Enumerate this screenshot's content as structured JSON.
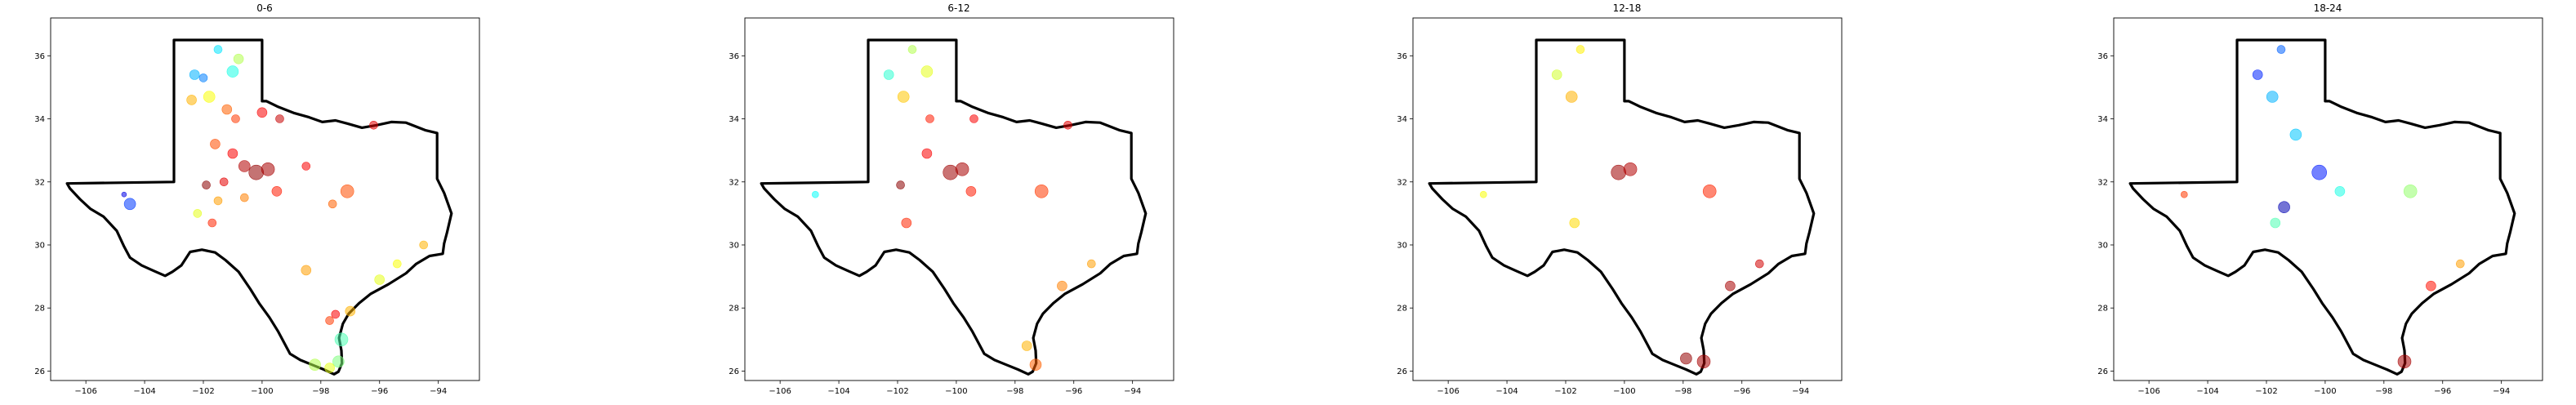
{
  "chart_data": [
    {
      "type": "scatter",
      "title": "0-6",
      "xlim": [
        -107.2,
        -92.6
      ],
      "ylim": [
        25.7,
        37.2
      ],
      "xticks": [
        "−106",
        "−104",
        "−102",
        "−100",
        "−98",
        "−96",
        "−94"
      ],
      "yticks": [
        "26",
        "28",
        "30",
        "32",
        "34",
        "36"
      ],
      "grid": false,
      "legend": false,
      "points": [
        {
          "lon": -104.7,
          "lat": 31.6,
          "v": 0.1,
          "s": 3
        },
        {
          "lon": -104.5,
          "lat": 31.3,
          "v": 0.18,
          "s": 7
        },
        {
          "lon": -102.3,
          "lat": 35.4,
          "v": 0.3,
          "s": 6
        },
        {
          "lon": -102.0,
          "lat": 35.3,
          "v": 0.25,
          "s": 5
        },
        {
          "lon": -101.5,
          "lat": 36.2,
          "v": 0.35,
          "s": 5
        },
        {
          "lon": -101.0,
          "lat": 35.5,
          "v": 0.4,
          "s": 7
        },
        {
          "lon": -100.8,
          "lat": 35.9,
          "v": 0.55,
          "s": 6
        },
        {
          "lon": -101.8,
          "lat": 34.7,
          "v": 0.62,
          "s": 7
        },
        {
          "lon": -102.4,
          "lat": 34.6,
          "v": 0.7,
          "s": 6
        },
        {
          "lon": -101.2,
          "lat": 34.3,
          "v": 0.78,
          "s": 6
        },
        {
          "lon": -100.9,
          "lat": 34.0,
          "v": 0.82,
          "s": 5
        },
        {
          "lon": -100.0,
          "lat": 34.2,
          "v": 0.88,
          "s": 6
        },
        {
          "lon": -99.4,
          "lat": 34.0,
          "v": 0.93,
          "s": 5
        },
        {
          "lon": -101.6,
          "lat": 33.2,
          "v": 0.8,
          "s": 6
        },
        {
          "lon": -101.0,
          "lat": 32.9,
          "v": 0.88,
          "s": 6
        },
        {
          "lon": -100.6,
          "lat": 32.5,
          "v": 0.95,
          "s": 7
        },
        {
          "lon": -100.2,
          "lat": 32.3,
          "v": 0.98,
          "s": 9
        },
        {
          "lon": -99.8,
          "lat": 32.4,
          "v": 0.96,
          "s": 8
        },
        {
          "lon": -101.3,
          "lat": 32.0,
          "v": 0.9,
          "s": 5
        },
        {
          "lon": -101.9,
          "lat": 31.9,
          "v": 0.99,
          "s": 5
        },
        {
          "lon": -101.5,
          "lat": 31.4,
          "v": 0.72,
          "s": 5
        },
        {
          "lon": -102.2,
          "lat": 31.0,
          "v": 0.6,
          "s": 5
        },
        {
          "lon": -101.7,
          "lat": 30.7,
          "v": 0.84,
          "s": 5
        },
        {
          "lon": -100.6,
          "lat": 31.5,
          "v": 0.75,
          "s": 5
        },
        {
          "lon": -99.5,
          "lat": 31.7,
          "v": 0.85,
          "s": 6
        },
        {
          "lon": -98.5,
          "lat": 32.5,
          "v": 0.88,
          "s": 5
        },
        {
          "lon": -97.6,
          "lat": 31.3,
          "v": 0.78,
          "s": 5
        },
        {
          "lon": -97.1,
          "lat": 31.7,
          "v": 0.8,
          "s": 8
        },
        {
          "lon": -96.2,
          "lat": 33.8,
          "v": 0.9,
          "s": 5
        },
        {
          "lon": -98.5,
          "lat": 29.2,
          "v": 0.72,
          "s": 6
        },
        {
          "lon": -97.7,
          "lat": 27.6,
          "v": 0.82,
          "s": 5
        },
        {
          "lon": -97.5,
          "lat": 27.8,
          "v": 0.88,
          "s": 5
        },
        {
          "lon": -97.0,
          "lat": 27.9,
          "v": 0.7,
          "s": 6
        },
        {
          "lon": -97.3,
          "lat": 27.0,
          "v": 0.45,
          "s": 8
        },
        {
          "lon": -97.4,
          "lat": 26.3,
          "v": 0.5,
          "s": 7
        },
        {
          "lon": -98.2,
          "lat": 26.2,
          "v": 0.55,
          "s": 7
        },
        {
          "lon": -97.7,
          "lat": 26.1,
          "v": 0.6,
          "s": 6
        },
        {
          "lon": -96.0,
          "lat": 28.9,
          "v": 0.6,
          "s": 6
        },
        {
          "lon": -95.4,
          "lat": 29.4,
          "v": 0.62,
          "s": 5
        },
        {
          "lon": -94.5,
          "lat": 30.0,
          "v": 0.7,
          "s": 5
        }
      ]
    },
    {
      "type": "scatter",
      "title": "6-12",
      "xlim": [
        -107.2,
        -92.6
      ],
      "ylim": [
        25.7,
        37.2
      ],
      "xticks": [
        "−106",
        "−104",
        "−102",
        "−100",
        "−98",
        "−96",
        "−94"
      ],
      "yticks": [
        "26",
        "28",
        "30",
        "32",
        "34",
        "36"
      ],
      "grid": false,
      "legend": false,
      "points": [
        {
          "lon": -104.8,
          "lat": 31.6,
          "v": 0.38,
          "s": 4
        },
        {
          "lon": -102.3,
          "lat": 35.4,
          "v": 0.42,
          "s": 6
        },
        {
          "lon": -101.5,
          "lat": 36.2,
          "v": 0.55,
          "s": 5
        },
        {
          "lon": -101.0,
          "lat": 35.5,
          "v": 0.6,
          "s": 7
        },
        {
          "lon": -101.8,
          "lat": 34.7,
          "v": 0.68,
          "s": 7
        },
        {
          "lon": -100.9,
          "lat": 34.0,
          "v": 0.85,
          "s": 5
        },
        {
          "lon": -99.4,
          "lat": 34.0,
          "v": 0.88,
          "s": 5
        },
        {
          "lon": -101.0,
          "lat": 32.9,
          "v": 0.88,
          "s": 6
        },
        {
          "lon": -100.2,
          "lat": 32.3,
          "v": 0.97,
          "s": 9
        },
        {
          "lon": -99.8,
          "lat": 32.4,
          "v": 0.96,
          "s": 8
        },
        {
          "lon": -101.9,
          "lat": 31.9,
          "v": 0.99,
          "s": 5
        },
        {
          "lon": -101.7,
          "lat": 30.7,
          "v": 0.84,
          "s": 6
        },
        {
          "lon": -99.5,
          "lat": 31.7,
          "v": 0.85,
          "s": 6
        },
        {
          "lon": -97.1,
          "lat": 31.7,
          "v": 0.82,
          "s": 8
        },
        {
          "lon": -96.2,
          "lat": 33.8,
          "v": 0.9,
          "s": 5
        },
        {
          "lon": -97.6,
          "lat": 26.8,
          "v": 0.7,
          "s": 6
        },
        {
          "lon": -97.3,
          "lat": 26.2,
          "v": 0.78,
          "s": 7
        },
        {
          "lon": -96.4,
          "lat": 28.7,
          "v": 0.75,
          "s": 6
        },
        {
          "lon": -95.4,
          "lat": 29.4,
          "v": 0.72,
          "s": 5
        }
      ]
    },
    {
      "type": "scatter",
      "title": "12-18",
      "xlim": [
        -107.2,
        -92.6
      ],
      "ylim": [
        25.7,
        37.2
      ],
      "xticks": [
        "−106",
        "−104",
        "−102",
        "−100",
        "−98",
        "−96",
        "−94"
      ],
      "yticks": [
        "26",
        "28",
        "30",
        "32",
        "34",
        "36"
      ],
      "grid": false,
      "legend": false,
      "points": [
        {
          "lon": -104.8,
          "lat": 31.6,
          "v": 0.62,
          "s": 4
        },
        {
          "lon": -102.3,
          "lat": 35.4,
          "v": 0.58,
          "s": 6
        },
        {
          "lon": -101.5,
          "lat": 36.2,
          "v": 0.64,
          "s": 5
        },
        {
          "lon": -101.8,
          "lat": 34.7,
          "v": 0.7,
          "s": 7
        },
        {
          "lon": -100.2,
          "lat": 32.3,
          "v": 0.97,
          "s": 9
        },
        {
          "lon": -99.8,
          "lat": 32.4,
          "v": 0.95,
          "s": 8
        },
        {
          "lon": -101.7,
          "lat": 30.7,
          "v": 0.66,
          "s": 6
        },
        {
          "lon": -97.1,
          "lat": 31.7,
          "v": 0.84,
          "s": 8
        },
        {
          "lon": -97.3,
          "lat": 26.3,
          "v": 0.96,
          "s": 8
        },
        {
          "lon": -97.9,
          "lat": 26.4,
          "v": 0.98,
          "s": 7
        },
        {
          "lon": -96.4,
          "lat": 28.7,
          "v": 0.96,
          "s": 6
        },
        {
          "lon": -95.4,
          "lat": 29.4,
          "v": 0.92,
          "s": 5
        }
      ]
    },
    {
      "type": "scatter",
      "title": "18-24",
      "xlim": [
        -107.2,
        -92.6
      ],
      "ylim": [
        25.7,
        37.2
      ],
      "xticks": [
        "−106",
        "−104",
        "−102",
        "−100",
        "−98",
        "−96",
        "−94"
      ],
      "yticks": [
        "26",
        "28",
        "30",
        "32",
        "34",
        "36"
      ],
      "grid": false,
      "legend": false,
      "points": [
        {
          "lon": -104.8,
          "lat": 31.6,
          "v": 0.82,
          "s": 4
        },
        {
          "lon": -102.3,
          "lat": 35.4,
          "v": 0.16,
          "s": 6
        },
        {
          "lon": -101.5,
          "lat": 36.2,
          "v": 0.22,
          "s": 5
        },
        {
          "lon": -101.8,
          "lat": 34.7,
          "v": 0.3,
          "s": 7
        },
        {
          "lon": -101.0,
          "lat": 33.5,
          "v": 0.32,
          "s": 7
        },
        {
          "lon": -100.2,
          "lat": 32.3,
          "v": 0.15,
          "s": 9
        },
        {
          "lon": -101.4,
          "lat": 31.2,
          "v": 0.05,
          "s": 7
        },
        {
          "lon": -101.7,
          "lat": 30.7,
          "v": 0.45,
          "s": 6
        },
        {
          "lon": -99.5,
          "lat": 31.7,
          "v": 0.4,
          "s": 6
        },
        {
          "lon": -97.1,
          "lat": 31.7,
          "v": 0.52,
          "s": 8
        },
        {
          "lon": -97.3,
          "lat": 26.3,
          "v": 0.96,
          "s": 8
        },
        {
          "lon": -96.4,
          "lat": 28.7,
          "v": 0.86,
          "s": 6
        },
        {
          "lon": -95.4,
          "lat": 29.4,
          "v": 0.72,
          "s": 5
        }
      ]
    }
  ]
}
